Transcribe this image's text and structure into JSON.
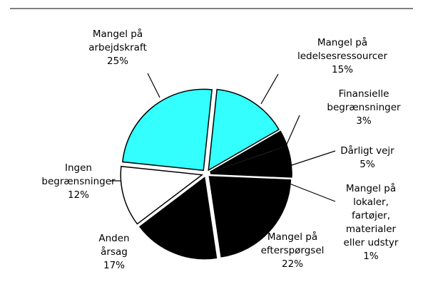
{
  "chart_data": {
    "type": "pie",
    "categories": [
      [
        "Mangel på",
        "ledelsesressourcer"
      ],
      [
        "Finansielle",
        "begrænsninger"
      ],
      [
        "Dårligt vejr"
      ],
      [
        "Mangel på",
        "lokaler,",
        "fartøjer,",
        "materialer",
        "eller udstyr"
      ],
      [
        "Mangel på",
        "efterspørgsel"
      ],
      [
        "Anden",
        "årsag"
      ],
      [
        "Ingen",
        "begrænsninger"
      ],
      [
        "Mangel på",
        "arbejdskraft"
      ]
    ],
    "values": [
      15,
      3,
      5,
      1,
      22,
      17,
      12,
      25
    ],
    "value_labels": [
      "15%",
      "3%",
      "5%",
      "1%",
      "22%",
      "17%",
      "12%",
      "25%"
    ],
    "colors": [
      "#33ffff",
      "#000000",
      "#000000",
      "#000000",
      "#000000",
      "#000000",
      "#ffffff",
      "#33ffff"
    ]
  }
}
